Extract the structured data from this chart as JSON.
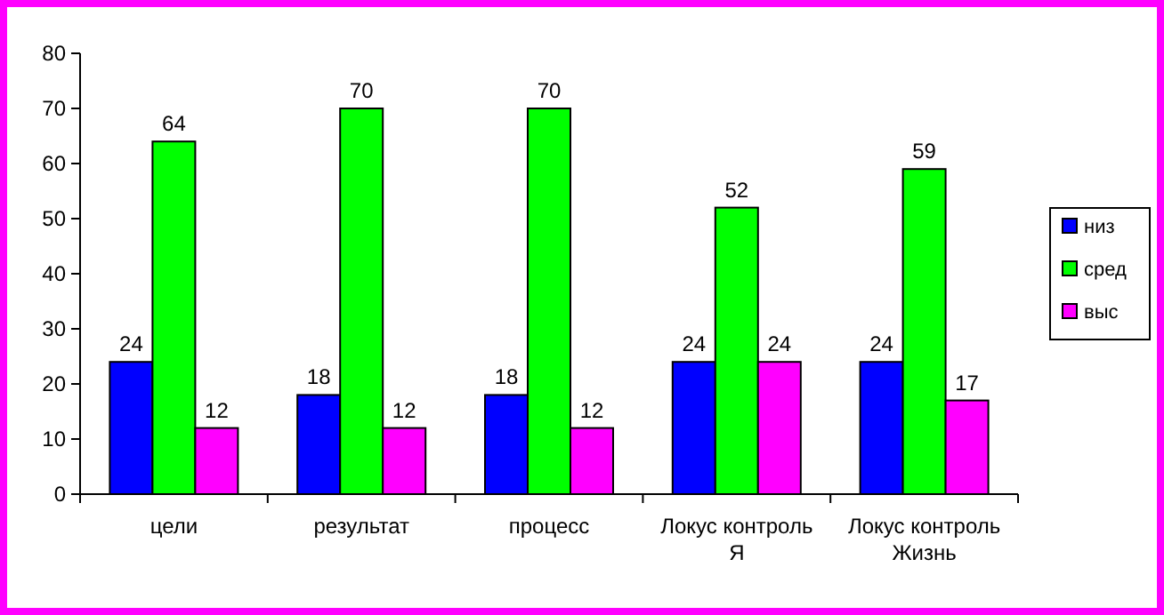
{
  "chart_data": {
    "type": "bar",
    "categories": [
      "цели",
      "результат",
      "процесс",
      "Локус контроль Я",
      "Локус контроль Жизнь"
    ],
    "series": [
      {
        "name": "низ",
        "color": "#0000ff",
        "values": [
          24,
          18,
          18,
          24,
          24
        ]
      },
      {
        "name": "сред",
        "color": "#00ff00",
        "values": [
          64,
          70,
          70,
          52,
          59
        ]
      },
      {
        "name": "выс",
        "color": "#ff00ff",
        "values": [
          12,
          12,
          12,
          24,
          17
        ]
      }
    ],
    "ylim": [
      0,
      80
    ],
    "yticks": [
      0,
      10,
      20,
      30,
      40,
      50,
      60,
      70,
      80
    ],
    "grid": false,
    "legend": "right",
    "data_labels": true
  }
}
